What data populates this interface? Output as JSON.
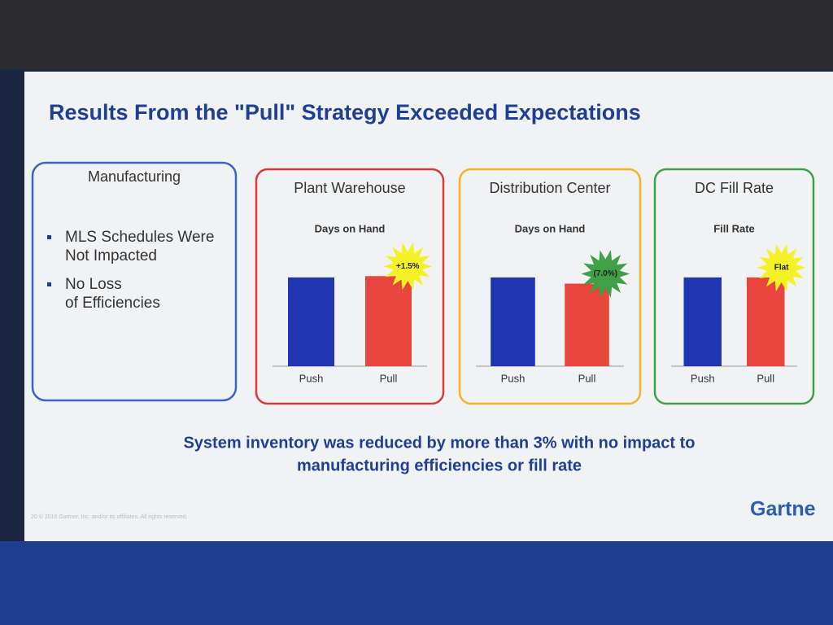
{
  "title": "Results From the \"Pull\" Strategy Exceeded Expectations",
  "manufacturing": {
    "title": "Manufacturing",
    "border": "#3a64c8",
    "bullets": [
      "MLS Schedules Were Not Impacted",
      "No Loss of Efficiencies"
    ]
  },
  "chart_data": [
    {
      "type": "bar",
      "title": "Plant Warehouse",
      "subtitle": "Days on Hand",
      "categories": [
        "Push",
        "Pull"
      ],
      "values": [
        100,
        101.5
      ],
      "colors": [
        "#2035b0",
        "#e8453c"
      ],
      "ylim": [
        0,
        110
      ],
      "badge": "+1.5%",
      "badge_color": "#f4f226",
      "border": "#d93a3a"
    },
    {
      "type": "bar",
      "title": "Distribution Center",
      "subtitle": "Days on Hand",
      "categories": [
        "Push",
        "Pull"
      ],
      "values": [
        100,
        93
      ],
      "colors": [
        "#2035b0",
        "#e8453c"
      ],
      "ylim": [
        0,
        110
      ],
      "badge": "(7.0%)",
      "badge_color": "#3fa048",
      "border": "#f0b429"
    },
    {
      "type": "bar",
      "title": "DC Fill Rate",
      "subtitle": "Fill Rate",
      "categories": [
        "Push",
        "Pull"
      ],
      "values": [
        100,
        100
      ],
      "colors": [
        "#2035b0",
        "#e8453c"
      ],
      "ylim": [
        0,
        110
      ],
      "badge": "Flat",
      "badge_color": "#f4f226",
      "border": "#3fa048"
    }
  ],
  "conclusion": [
    "System inventory was reduced by more than 3% with no impact to",
    "manufacturing efficiencies or fill rate"
  ],
  "footer": "20   © 2016 Gartner, Inc. and/or its affiliates. All rights reserved.",
  "logo": "Gartne"
}
